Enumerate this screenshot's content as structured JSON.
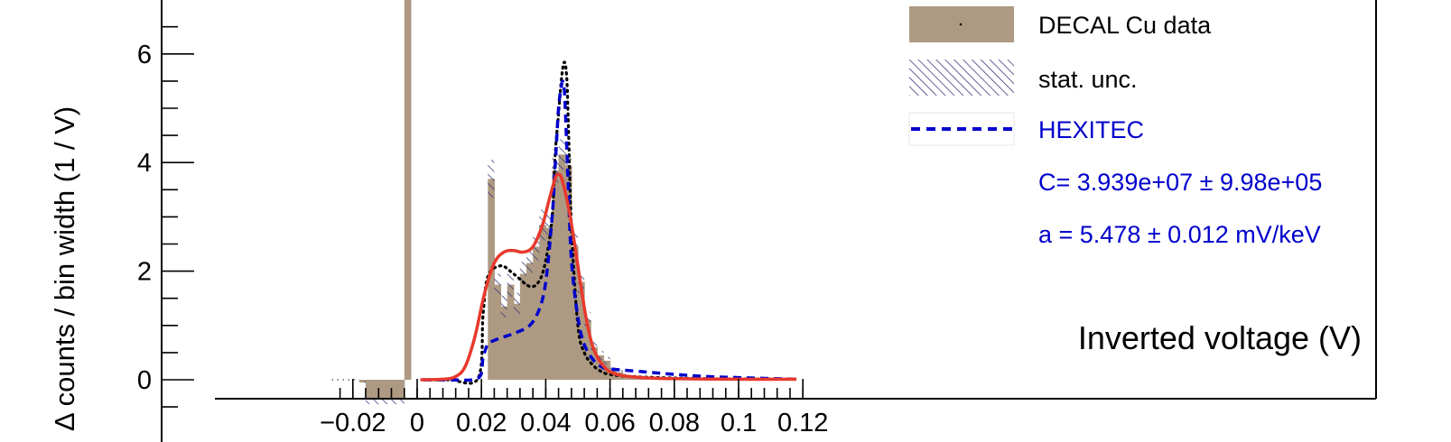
{
  "chart_data": {
    "type": "histogram",
    "xlabel": "Inverted voltage (V)",
    "ylabel": "Δ counts / bin width (1 / V)",
    "xlim": [
      -0.026,
      0.12
    ],
    "ylim": [
      -0.36,
      7.0
    ],
    "x_ticks": [
      -0.02,
      0,
      0.02,
      0.04,
      0.06,
      0.08,
      0.1,
      0.12
    ],
    "x_tick_labels": [
      "−0.02",
      "0",
      "0.02",
      "0.04",
      "0.06",
      "0.08",
      "0.1",
      "0.12"
    ],
    "y_ticks": [
      0,
      2,
      4,
      6
    ],
    "y_tick_labels": [
      "0",
      "2",
      "4",
      "6"
    ],
    "bin_width": 0.002,
    "histogram": {
      "name": "DECAL Cu data",
      "color": "#ae9a82",
      "x": [
        -0.018,
        -0.016,
        -0.014,
        -0.012,
        -0.01,
        -0.008,
        -0.006,
        -0.004,
        0.022,
        0.024,
        0.026,
        0.028,
        0.03,
        0.032,
        0.034,
        0.036,
        0.038,
        0.04,
        0.042,
        0.044,
        0.046,
        0.048,
        0.05,
        0.052,
        0.054,
        0.056,
        0.058,
        0.06,
        0.062,
        0.064,
        0.066,
        0.068,
        0.07
      ],
      "y": [
        -0.05,
        -0.4,
        -0.4,
        -0.4,
        -0.4,
        -0.4,
        -0.4,
        7.5,
        3.7,
        1.75,
        1.35,
        1.75,
        1.4,
        1.95,
        2.15,
        2.45,
        2.85,
        2.8,
        3.85,
        4.15,
        3.95,
        2.45,
        1.8,
        1.1,
        0.6,
        0.45,
        0.35,
        0.18,
        0.14,
        0.08,
        0.06,
        0.05,
        0.04
      ],
      "unc": [
        0.02,
        0.05,
        0.05,
        0.05,
        0.05,
        0.05,
        0.05,
        0.2,
        0.35,
        0.2,
        0.2,
        0.22,
        0.2,
        0.22,
        0.22,
        0.25,
        0.28,
        0.25,
        0.28,
        0.28,
        0.28,
        0.25,
        0.2,
        0.15,
        0.1,
        0.08,
        0.07,
        0.05,
        0.04,
        0.03,
        0.03,
        0.02,
        0.02
      ]
    },
    "curves": {
      "hexitec": {
        "name": "HEXITEC",
        "color": "#0000cc",
        "x": [
          0.002,
          0.01,
          0.019,
          0.0205,
          0.022,
          0.025,
          0.03,
          0.035,
          0.038,
          0.04,
          0.042,
          0.043,
          0.044,
          0.045,
          0.0455,
          0.046,
          0.047,
          0.048,
          0.05,
          0.052,
          0.055,
          0.058,
          0.06,
          0.07,
          0.08,
          0.09,
          0.1,
          0.118
        ],
        "y": [
          0.0,
          0.0,
          0.03,
          0.4,
          0.65,
          0.75,
          0.85,
          1.0,
          1.3,
          1.8,
          3.0,
          4.0,
          5.0,
          5.45,
          5.45,
          5.1,
          3.6,
          2.2,
          1.15,
          0.65,
          0.35,
          0.22,
          0.2,
          0.15,
          0.1,
          0.06,
          0.04,
          0.01
        ]
      },
      "black_dotted": {
        "color": "#000000",
        "x": [
          0.002,
          0.01,
          0.019,
          0.0205,
          0.022,
          0.026,
          0.03,
          0.035,
          0.038,
          0.04,
          0.042,
          0.043,
          0.044,
          0.045,
          0.0458,
          0.0465,
          0.047,
          0.048,
          0.05,
          0.052,
          0.055,
          0.058,
          0.06,
          0.062,
          0.07,
          0.09,
          0.118
        ],
        "y": [
          0.0,
          0.0,
          0.03,
          1.2,
          1.9,
          2.1,
          1.95,
          1.72,
          1.82,
          2.2,
          3.0,
          4.2,
          4.9,
          5.6,
          5.85,
          5.6,
          4.8,
          2.8,
          1.0,
          0.5,
          0.25,
          0.13,
          0.1,
          0.08,
          0.05,
          0.02,
          0.01
        ]
      },
      "fit": {
        "color": "#e8392c",
        "x": [
          0.001,
          0.008,
          0.012,
          0.015,
          0.018,
          0.021,
          0.024,
          0.027,
          0.03,
          0.033,
          0.036,
          0.039,
          0.041,
          0.043,
          0.044,
          0.045,
          0.047,
          0.049,
          0.051,
          0.053,
          0.055,
          0.058,
          0.062,
          0.07,
          0.08,
          0.1,
          0.118
        ],
        "y": [
          0.0,
          0.01,
          0.06,
          0.25,
          0.8,
          1.6,
          2.15,
          2.35,
          2.38,
          2.35,
          2.45,
          2.85,
          3.3,
          3.72,
          3.78,
          3.7,
          3.2,
          2.5,
          1.7,
          1.0,
          0.55,
          0.25,
          0.1,
          0.04,
          0.02,
          0.01,
          0.01
        ]
      }
    },
    "legend": {
      "entries": [
        "DECAL Cu data",
        "stat. unc.",
        "HEXITEC"
      ],
      "fit_params": [
        "C= 3.939e+07 ± 9.98e+05",
        "a = 5.478 ± 0.012 mV/keV"
      ]
    }
  }
}
